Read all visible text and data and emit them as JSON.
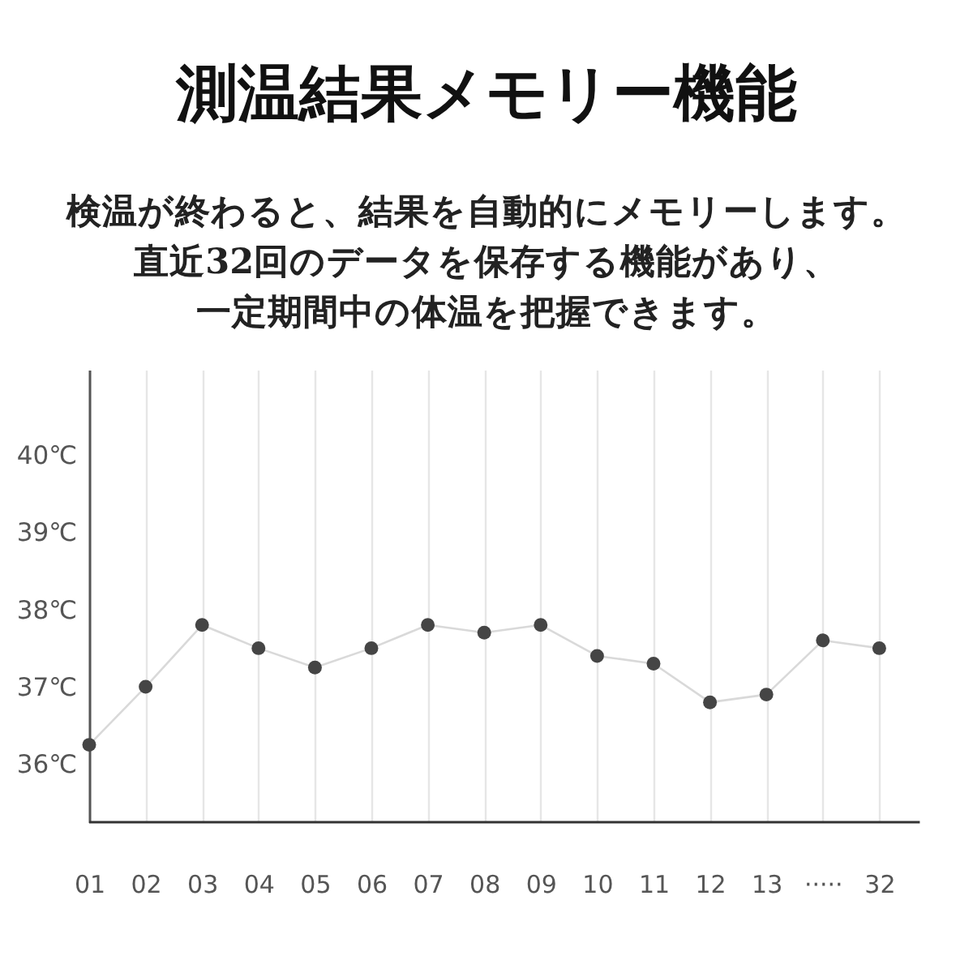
{
  "chart_data": {
    "type": "line",
    "title": "測温結果メモリー機能",
    "subtitle": "検温が終わると、結果を自動的にメモリーします。直近32回のデータを保存する機能があり、一定期間中の体温を把握できます。",
    "categories": [
      "01",
      "02",
      "03",
      "04",
      "05",
      "06",
      "07",
      "08",
      "09",
      "10",
      "11",
      "12",
      "13",
      "·····",
      "32"
    ],
    "series": [
      {
        "color": "#d9d9d9",
        "marker": "none",
        "values": [
          36.25,
          37.0,
          37.8,
          37.5,
          37.25,
          37.5,
          37.8,
          37.7,
          37.8,
          37.4,
          37.3,
          36.8,
          36.9,
          37.6,
          37.5
        ]
      },
      {
        "type": "scatter",
        "color": "#454545",
        "marker": "circle",
        "values": [
          36.25,
          37.0,
          37.8,
          37.5,
          37.25,
          37.5,
          37.8,
          37.7,
          37.8,
          37.4,
          37.3,
          36.8,
          36.9,
          37.6,
          37.5
        ]
      }
    ],
    "ylim": [
      35.25,
      41.1
    ],
    "yticks": [
      {
        "value": 36,
        "label": "36℃"
      },
      {
        "value": 37,
        "label": "37℃"
      },
      {
        "value": 38,
        "label": "38℃"
      },
      {
        "value": 39,
        "label": "39℃"
      },
      {
        "value": 40,
        "label": "40℃"
      }
    ],
    "grid": "x"
  }
}
